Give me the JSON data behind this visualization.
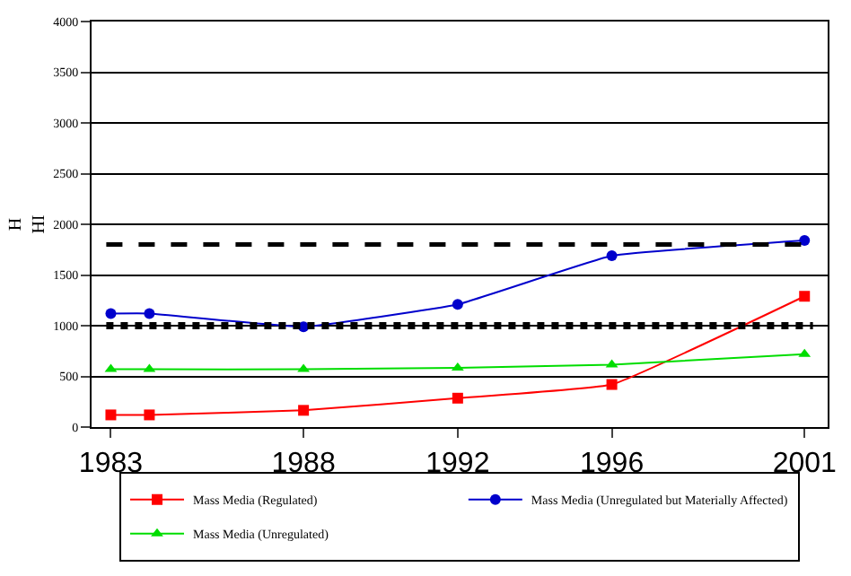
{
  "chart_data": {
    "type": "line",
    "ylabel": "H\nHI",
    "x": [
      1983,
      1984,
      1988,
      1992,
      1996,
      2001
    ],
    "series": [
      {
        "name": "Mass Media (Regulated)",
        "color": "#ff0000",
        "marker": "square",
        "values": [
          120,
          120,
          165,
          285,
          420,
          1290
        ]
      },
      {
        "name": "Mass Media (Unregulated but Materially Affected)",
        "color": "#0000cc",
        "marker": "circle",
        "values": [
          1120,
          1120,
          990,
          1210,
          1690,
          1840
        ]
      },
      {
        "name": "Mass Media (Unregulated)",
        "color": "#00dd00",
        "marker": "triangle",
        "values": [
          570,
          570,
          570,
          585,
          615,
          720
        ]
      }
    ],
    "xlim": [
      1982.5,
      2001.6
    ],
    "xticks": [
      1983,
      1988,
      1992,
      1996,
      2001
    ],
    "ylim": [
      0,
      4000
    ],
    "yticks": [
      0,
      500,
      1000,
      1500,
      2000,
      2500,
      3000,
      3500,
      4000
    ],
    "ref_lines": [
      {
        "axis": "y",
        "value": 1800,
        "color": "#000000",
        "line_style": "dashed"
      },
      {
        "axis": "y",
        "value": 1000,
        "color": "#000000",
        "line_style": "dotted"
      }
    ],
    "grid": "y",
    "legend": "bottom",
    "line_style": "solid"
  }
}
